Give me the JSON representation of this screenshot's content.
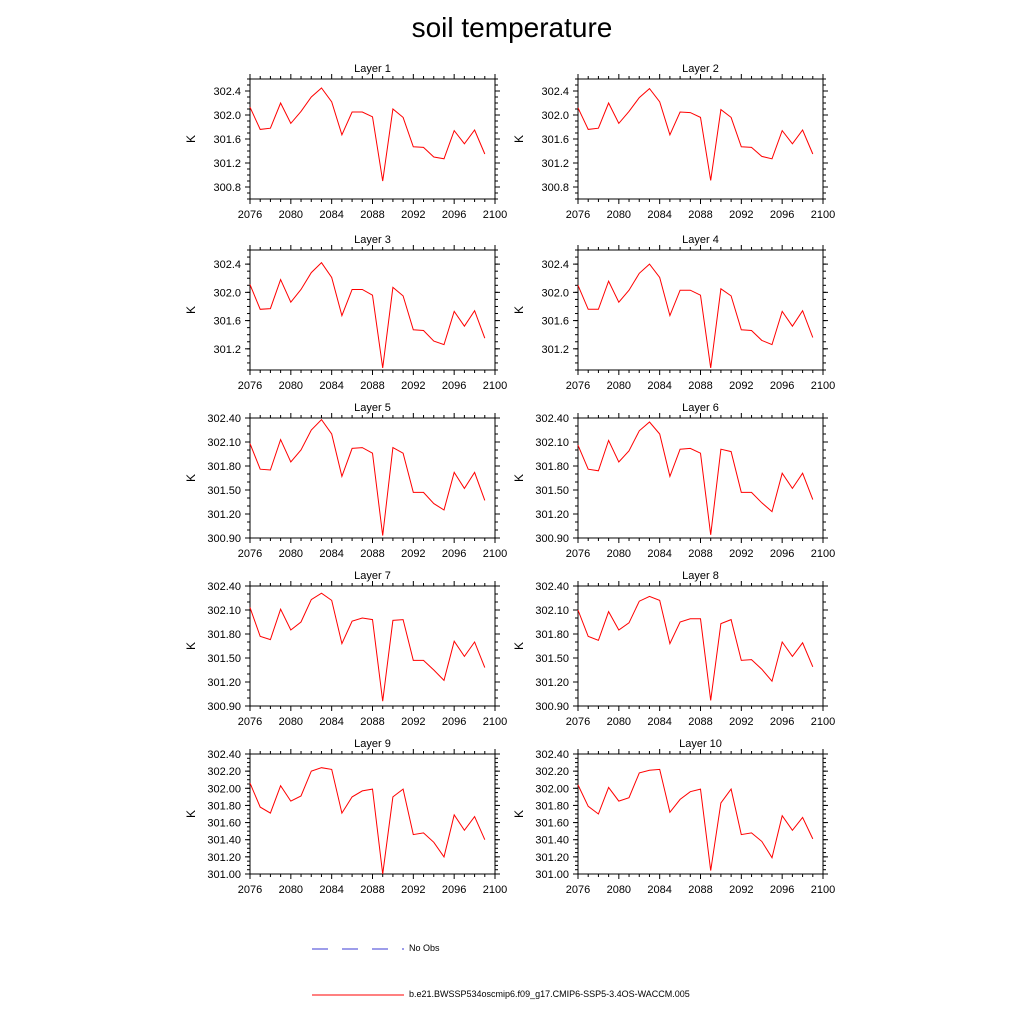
{
  "title": "soil temperature",
  "legend": {
    "obs_label": "No Obs",
    "obs_color": "#3b3bd6",
    "model_label": "b.e21.BWSSP534oscmip6.f09_g17.CMIP6-SSP5-3.4OS-WACCM.005",
    "model_color": "#ff0000"
  },
  "chart_data": [
    {
      "type": "line",
      "title": "Layer 1",
      "ylabel": "K",
      "xlim": [
        2076,
        2100
      ],
      "xticks": [
        2076,
        2080,
        2084,
        2088,
        2092,
        2096,
        2100
      ],
      "ylim": [
        300.6,
        302.6
      ],
      "yticks": [
        300.8,
        301.2,
        301.6,
        302.0,
        302.4
      ],
      "ydecimals": 1,
      "series": [
        {
          "x": [
            2076,
            2077,
            2078,
            2079,
            2080,
            2081,
            2082,
            2083,
            2084,
            2085,
            2086,
            2087,
            2088,
            2089,
            2090,
            2091,
            2092,
            2093,
            2094,
            2095,
            2096,
            2097,
            2098,
            2099
          ],
          "values": [
            302.13,
            301.76,
            301.78,
            302.2,
            301.86,
            302.06,
            302.3,
            302.45,
            302.22,
            301.67,
            302.05,
            302.05,
            301.97,
            300.9,
            302.1,
            301.96,
            301.47,
            301.46,
            301.3,
            301.27,
            301.74,
            301.52,
            301.75,
            301.35
          ]
        }
      ]
    },
    {
      "type": "line",
      "title": "Layer 2",
      "ylabel": "K",
      "xlim": [
        2076,
        2100
      ],
      "xticks": [
        2076,
        2080,
        2084,
        2088,
        2092,
        2096,
        2100
      ],
      "ylim": [
        300.6,
        302.6
      ],
      "yticks": [
        300.8,
        301.2,
        301.6,
        302.0,
        302.4
      ],
      "ydecimals": 1,
      "series": [
        {
          "x": [
            2076,
            2077,
            2078,
            2079,
            2080,
            2081,
            2082,
            2083,
            2084,
            2085,
            2086,
            2087,
            2088,
            2089,
            2090,
            2091,
            2092,
            2093,
            2094,
            2095,
            2096,
            2097,
            2098,
            2099
          ],
          "values": [
            302.12,
            301.76,
            301.78,
            302.2,
            301.86,
            302.06,
            302.29,
            302.44,
            302.22,
            301.67,
            302.05,
            302.04,
            301.96,
            300.91,
            302.09,
            301.96,
            301.47,
            301.46,
            301.31,
            301.27,
            301.74,
            301.52,
            301.75,
            301.35
          ]
        }
      ]
    },
    {
      "type": "line",
      "title": "Layer 3",
      "ylabel": "K",
      "xlim": [
        2076,
        2100
      ],
      "xticks": [
        2076,
        2080,
        2084,
        2088,
        2092,
        2096,
        2100
      ],
      "ylim": [
        300.9,
        302.6
      ],
      "yticks": [
        301.2,
        301.6,
        302.0,
        302.4
      ],
      "ydecimals": 1,
      "series": [
        {
          "x": [
            2076,
            2077,
            2078,
            2079,
            2080,
            2081,
            2082,
            2083,
            2084,
            2085,
            2086,
            2087,
            2088,
            2089,
            2090,
            2091,
            2092,
            2093,
            2094,
            2095,
            2096,
            2097,
            2098,
            2099
          ],
          "values": [
            302.11,
            301.76,
            301.77,
            302.18,
            301.86,
            302.04,
            302.28,
            302.42,
            302.21,
            301.67,
            302.04,
            302.04,
            301.96,
            300.93,
            302.07,
            301.95,
            301.47,
            301.46,
            301.31,
            301.26,
            301.73,
            301.52,
            301.74,
            301.35
          ]
        }
      ]
    },
    {
      "type": "line",
      "title": "Layer 4",
      "ylabel": "K",
      "xlim": [
        2076,
        2100
      ],
      "xticks": [
        2076,
        2080,
        2084,
        2088,
        2092,
        2096,
        2100
      ],
      "ylim": [
        300.9,
        302.6
      ],
      "yticks": [
        301.2,
        301.6,
        302.0,
        302.4
      ],
      "ydecimals": 1,
      "series": [
        {
          "x": [
            2076,
            2077,
            2078,
            2079,
            2080,
            2081,
            2082,
            2083,
            2084,
            2085,
            2086,
            2087,
            2088,
            2089,
            2090,
            2091,
            2092,
            2093,
            2094,
            2095,
            2096,
            2097,
            2098,
            2099
          ],
          "values": [
            302.1,
            301.76,
            301.76,
            302.16,
            301.86,
            302.03,
            302.27,
            302.4,
            302.21,
            301.67,
            302.03,
            302.03,
            301.96,
            300.93,
            302.05,
            301.95,
            301.47,
            301.46,
            301.32,
            301.26,
            301.73,
            301.52,
            301.74,
            301.36
          ]
        }
      ]
    },
    {
      "type": "line",
      "title": "Layer 5",
      "ylabel": "K",
      "xlim": [
        2076,
        2100
      ],
      "xticks": [
        2076,
        2080,
        2084,
        2088,
        2092,
        2096,
        2100
      ],
      "ylim": [
        300.9,
        302.4
      ],
      "yticks": [
        300.9,
        301.2,
        301.5,
        301.8,
        302.1,
        302.4
      ],
      "ydecimals": 2,
      "series": [
        {
          "x": [
            2076,
            2077,
            2078,
            2079,
            2080,
            2081,
            2082,
            2083,
            2084,
            2085,
            2086,
            2087,
            2088,
            2089,
            2090,
            2091,
            2092,
            2093,
            2094,
            2095,
            2096,
            2097,
            2098,
            2099
          ],
          "values": [
            302.08,
            301.76,
            301.75,
            302.13,
            301.85,
            302.0,
            302.25,
            302.38,
            302.2,
            301.67,
            302.02,
            302.03,
            301.96,
            300.93,
            302.03,
            301.96,
            301.47,
            301.47,
            301.33,
            301.25,
            301.72,
            301.52,
            301.72,
            301.37
          ]
        }
      ]
    },
    {
      "type": "line",
      "title": "Layer 6",
      "ylabel": "K",
      "xlim": [
        2076,
        2100
      ],
      "xticks": [
        2076,
        2080,
        2084,
        2088,
        2092,
        2096,
        2100
      ],
      "ylim": [
        300.9,
        302.4
      ],
      "yticks": [
        300.9,
        301.2,
        301.5,
        301.8,
        302.1,
        302.4
      ],
      "ydecimals": 2,
      "series": [
        {
          "x": [
            2076,
            2077,
            2078,
            2079,
            2080,
            2081,
            2082,
            2083,
            2084,
            2085,
            2086,
            2087,
            2088,
            2089,
            2090,
            2091,
            2092,
            2093,
            2094,
            2095,
            2096,
            2097,
            2098,
            2099
          ],
          "values": [
            302.06,
            301.76,
            301.74,
            302.12,
            301.85,
            301.99,
            302.24,
            302.35,
            302.2,
            301.67,
            302.01,
            302.02,
            301.96,
            300.94,
            302.01,
            301.98,
            301.47,
            301.47,
            301.34,
            301.23,
            301.71,
            301.52,
            301.71,
            301.38
          ]
        }
      ]
    },
    {
      "type": "line",
      "title": "Layer 7",
      "ylabel": "K",
      "xlim": [
        2076,
        2100
      ],
      "xticks": [
        2076,
        2080,
        2084,
        2088,
        2092,
        2096,
        2100
      ],
      "ylim": [
        300.9,
        302.4
      ],
      "yticks": [
        300.9,
        301.2,
        301.5,
        301.8,
        302.1,
        302.4
      ],
      "ydecimals": 2,
      "series": [
        {
          "x": [
            2076,
            2077,
            2078,
            2079,
            2080,
            2081,
            2082,
            2083,
            2084,
            2085,
            2086,
            2087,
            2088,
            2089,
            2090,
            2091,
            2092,
            2093,
            2094,
            2095,
            2096,
            2097,
            2098,
            2099
          ],
          "values": [
            302.13,
            301.77,
            301.73,
            302.11,
            301.85,
            301.95,
            302.23,
            302.31,
            302.22,
            301.68,
            301.96,
            302.0,
            301.98,
            300.96,
            301.97,
            301.98,
            301.47,
            301.47,
            301.35,
            301.22,
            301.71,
            301.52,
            301.7,
            301.38
          ]
        }
      ]
    },
    {
      "type": "line",
      "title": "Layer 8",
      "ylabel": "K",
      "xlim": [
        2076,
        2100
      ],
      "xticks": [
        2076,
        2080,
        2084,
        2088,
        2092,
        2096,
        2100
      ],
      "ylim": [
        300.9,
        302.4
      ],
      "yticks": [
        300.9,
        301.2,
        301.5,
        301.8,
        302.1,
        302.4
      ],
      "ydecimals": 2,
      "series": [
        {
          "x": [
            2076,
            2077,
            2078,
            2079,
            2080,
            2081,
            2082,
            2083,
            2084,
            2085,
            2086,
            2087,
            2088,
            2089,
            2090,
            2091,
            2092,
            2093,
            2094,
            2095,
            2096,
            2097,
            2098,
            2099
          ],
          "values": [
            302.1,
            301.77,
            301.72,
            302.08,
            301.85,
            301.94,
            302.21,
            302.27,
            302.22,
            301.68,
            301.95,
            301.99,
            301.99,
            300.97,
            301.93,
            301.98,
            301.47,
            301.48,
            301.36,
            301.21,
            301.7,
            301.52,
            301.69,
            301.39
          ]
        }
      ]
    },
    {
      "type": "line",
      "title": "Layer 9",
      "ylabel": "K",
      "xlim": [
        2076,
        2100
      ],
      "xticks": [
        2076,
        2080,
        2084,
        2088,
        2092,
        2096,
        2100
      ],
      "ylim": [
        301.0,
        302.4
      ],
      "yticks": [
        301.0,
        301.2,
        301.4,
        301.6,
        301.8,
        302.0,
        302.2,
        302.4
      ],
      "ydecimals": 2,
      "series": [
        {
          "x": [
            2076,
            2077,
            2078,
            2079,
            2080,
            2081,
            2082,
            2083,
            2084,
            2085,
            2086,
            2087,
            2088,
            2089,
            2090,
            2091,
            2092,
            2093,
            2094,
            2095,
            2096,
            2097,
            2098,
            2099
          ],
          "values": [
            302.06,
            301.78,
            301.71,
            302.03,
            301.85,
            301.91,
            302.2,
            302.24,
            302.22,
            301.71,
            301.9,
            301.97,
            301.99,
            301.0,
            301.9,
            301.99,
            301.46,
            301.48,
            301.37,
            301.2,
            301.69,
            301.51,
            301.67,
            301.4
          ]
        }
      ]
    },
    {
      "type": "line",
      "title": "Layer 10",
      "ylabel": "K",
      "xlim": [
        2076,
        2100
      ],
      "xticks": [
        2076,
        2080,
        2084,
        2088,
        2092,
        2096,
        2100
      ],
      "ylim": [
        301.0,
        302.4
      ],
      "yticks": [
        301.0,
        301.2,
        301.4,
        301.6,
        301.8,
        302.0,
        302.2,
        302.4
      ],
      "ydecimals": 2,
      "series": [
        {
          "x": [
            2076,
            2077,
            2078,
            2079,
            2080,
            2081,
            2082,
            2083,
            2084,
            2085,
            2086,
            2087,
            2088,
            2089,
            2090,
            2091,
            2092,
            2093,
            2094,
            2095,
            2096,
            2097,
            2098,
            2099
          ],
          "values": [
            302.04,
            301.79,
            301.7,
            302.01,
            301.85,
            301.89,
            302.18,
            302.21,
            302.22,
            301.72,
            301.87,
            301.96,
            301.99,
            301.04,
            301.83,
            301.99,
            301.46,
            301.48,
            301.38,
            301.19,
            301.68,
            301.51,
            301.66,
            301.41
          ]
        }
      ]
    }
  ]
}
